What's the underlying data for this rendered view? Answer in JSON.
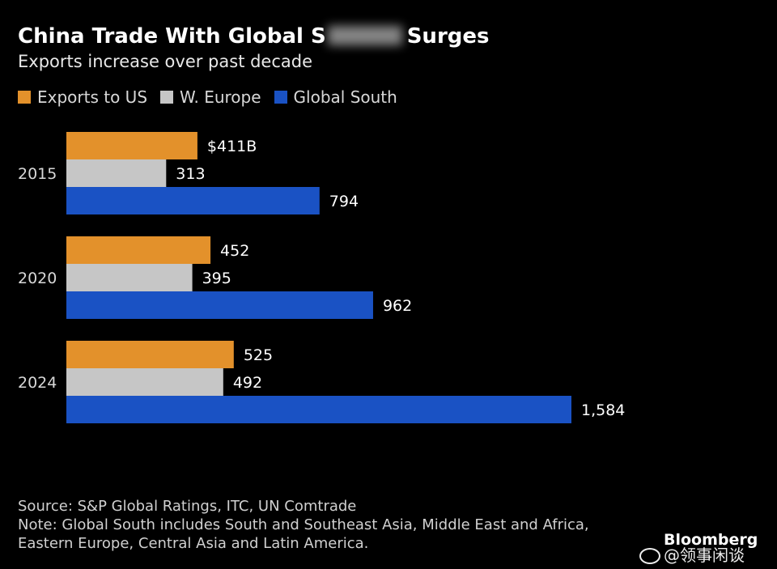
{
  "chart_data": {
    "type": "bar",
    "orientation": "horizontal",
    "title": {
      "before": "China Trade With Global S",
      "after": "Surges"
    },
    "subtitle": "Exports increase over past decade",
    "categories": [
      "2015",
      "2020",
      "2024"
    ],
    "series": [
      {
        "name": "Exports to US",
        "color": "#E3912B",
        "values": [
          411,
          452,
          525
        ],
        "labels": [
          "$411B",
          "452",
          "525"
        ]
      },
      {
        "name": "W. Europe",
        "color": "#C6C6C6",
        "values": [
          313,
          395,
          492
        ],
        "labels": [
          "313",
          "395",
          "492"
        ]
      },
      {
        "name": "Global South",
        "color": "#1A52C4",
        "values": [
          794,
          962,
          1584
        ],
        "labels": [
          "794",
          "962",
          "1,584"
        ]
      }
    ],
    "xlim": [
      0,
      1584
    ],
    "unit": "billion USD",
    "legend_position": "top-left",
    "grid": false
  },
  "footer": {
    "source": "Source: S&P Global Ratings, ITC, UN Comtrade",
    "note": "Note: Global South includes South and Southeast Asia, Middle East and Africa, Eastern Europe, Central Asia and Latin America."
  },
  "brand": "Bloomberg",
  "watermark": "@领事闲谈"
}
